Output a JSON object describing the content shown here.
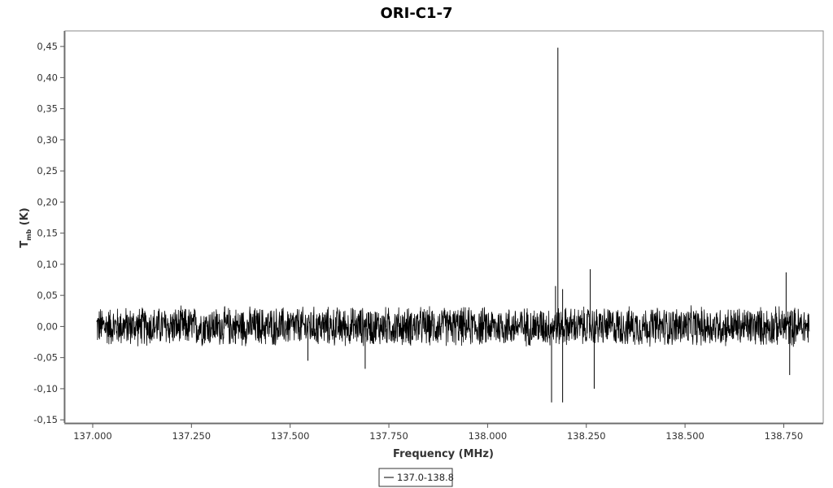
{
  "chart_data": {
    "type": "line",
    "title": "ORI-C1-7",
    "xlabel": "Frequency (MHz)",
    "ylabel_main": "T",
    "ylabel_sub": "mb",
    "ylabel_unit": " (K)",
    "xlim": [
      136.93,
      138.85
    ],
    "ylim": [
      -0.155,
      0.475
    ],
    "x_ticks": [
      137.0,
      137.25,
      137.5,
      137.75,
      138.0,
      138.25,
      138.5,
      138.75
    ],
    "x_tick_labels": [
      "137.000",
      "137.250",
      "137.500",
      "137.750",
      "138.000",
      "138.250",
      "138.500",
      "138.750"
    ],
    "y_ticks": [
      -0.15,
      -0.1,
      -0.05,
      0.0,
      0.05,
      0.1,
      0.15,
      0.2,
      0.25,
      0.3,
      0.35,
      0.4,
      0.45
    ],
    "y_tick_labels": [
      "-0,15",
      "-0,10",
      "-0,05",
      "0,00",
      "0,05",
      "0,10",
      "0,15",
      "0,20",
      "0,25",
      "0,30",
      "0,35",
      "0,40",
      "0,45"
    ],
    "grid": false,
    "legend_position": "bottom-center",
    "series": [
      {
        "name": "137.0-138.8",
        "color": "#000000",
        "x_range": [
          137.01,
          138.815
        ],
        "noise_amplitude": 0.035,
        "peaks": [
          {
            "x": 138.178,
            "y": 0.448
          },
          {
            "x": 138.172,
            "y": 0.065
          },
          {
            "x": 138.19,
            "y": 0.06
          },
          {
            "x": 138.26,
            "y": 0.092
          },
          {
            "x": 138.756,
            "y": 0.087
          },
          {
            "x": 138.162,
            "y": -0.122
          },
          {
            "x": 138.19,
            "y": -0.122
          },
          {
            "x": 138.27,
            "y": -0.1
          },
          {
            "x": 138.765,
            "y": -0.078
          },
          {
            "x": 137.69,
            "y": -0.068
          },
          {
            "x": 137.545,
            "y": -0.055
          }
        ]
      }
    ]
  },
  "colors": {
    "frame": "#888888",
    "axis": "#555555",
    "series": "#000000"
  }
}
